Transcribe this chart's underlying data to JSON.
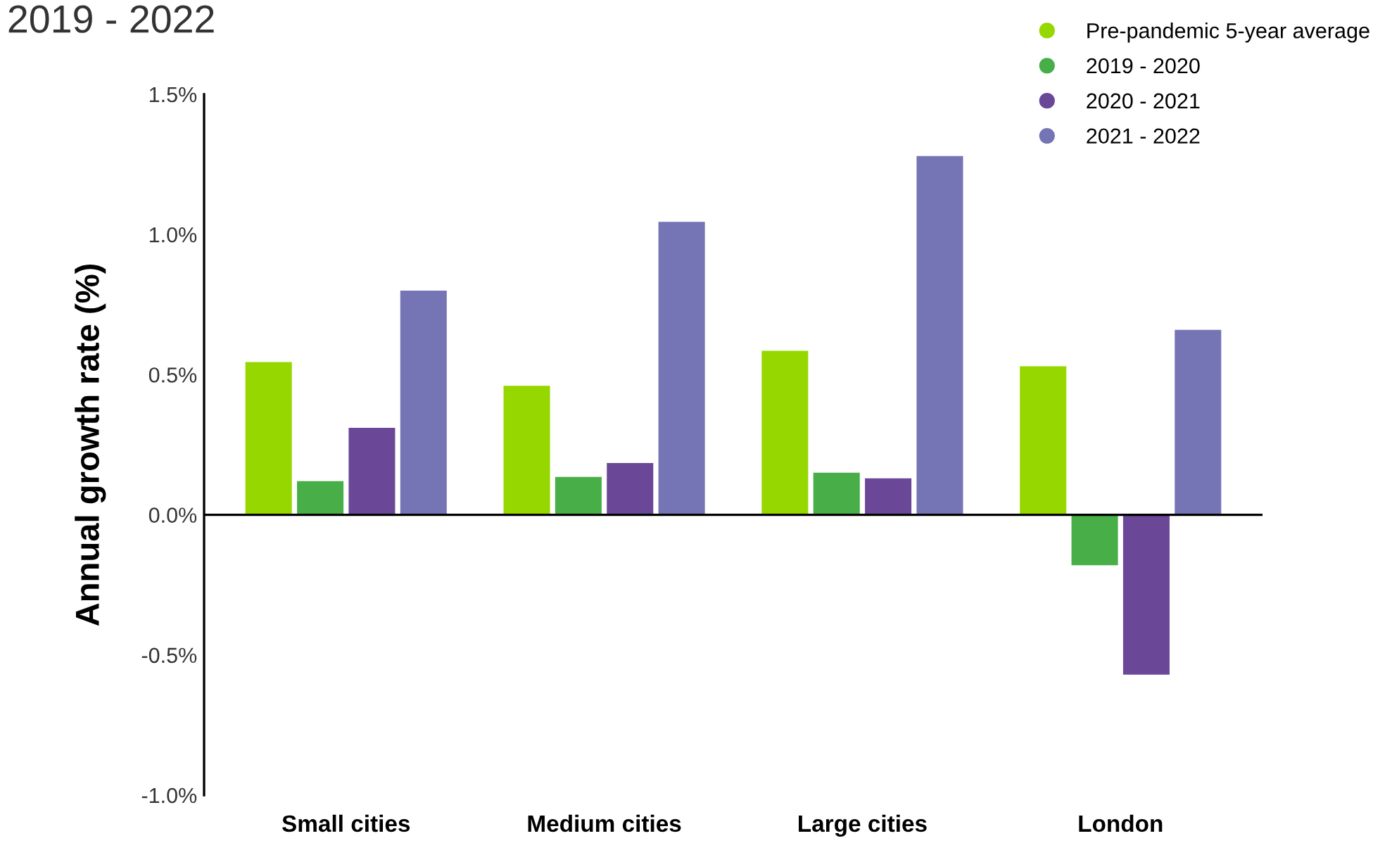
{
  "chart_data": {
    "type": "bar",
    "title": "2019 - 2022",
    "ylabel": "Annual growth rate (%)",
    "categories": [
      "Small cities",
      "Medium cities",
      "Large cities",
      "London"
    ],
    "series": [
      {
        "name": "Pre-pandemic 5-year average",
        "color": "#97d700",
        "values": [
          0.545,
          0.46,
          0.585,
          0.53
        ]
      },
      {
        "name": "2019 - 2020",
        "color": "#47ae48",
        "values": [
          0.12,
          0.135,
          0.15,
          -0.18
        ]
      },
      {
        "name": "2020 - 2021",
        "color": "#6a4797",
        "values": [
          0.31,
          0.185,
          0.13,
          -0.57
        ]
      },
      {
        "name": "2021 - 2022",
        "color": "#7574b4",
        "values": [
          0.8,
          1.045,
          1.28,
          0.66
        ]
      }
    ],
    "ylim": [
      -1.0,
      1.5
    ],
    "yticks": [
      {
        "value": -1.0,
        "label": "-1.0%"
      },
      {
        "value": -0.5,
        "label": "-0.5%"
      },
      {
        "value": 0.0,
        "label": "0.0%"
      },
      {
        "value": 0.5,
        "label": "0.5%"
      },
      {
        "value": 1.0,
        "label": "1.0%"
      },
      {
        "value": 1.5,
        "label": "1.5%"
      }
    ],
    "legend": "top right",
    "ref_lines": [
      {
        "axis": "y",
        "value": 0
      }
    ]
  }
}
